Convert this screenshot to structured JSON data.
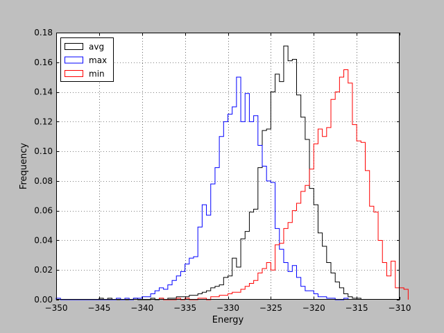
{
  "chart_data": {
    "type": "histogram-step",
    "xlabel": "Energy",
    "ylabel": "Frequency",
    "xlim": [
      -350,
      -310
    ],
    "ylim": [
      0,
      0.18
    ],
    "xticks": [
      -350,
      -345,
      -340,
      -335,
      -330,
      -325,
      -320,
      -315,
      -310
    ],
    "xtick_labels": [
      "−350",
      "−345",
      "−340",
      "−335",
      "−330",
      "−325",
      "−320",
      "−315",
      "−310"
    ],
    "yticks": [
      0.0,
      0.02,
      0.04,
      0.06,
      0.08,
      0.1,
      0.12,
      0.14,
      0.16,
      0.18
    ],
    "ytick_labels": [
      "0.00",
      "0.02",
      "0.04",
      "0.06",
      "0.08",
      "0.10",
      "0.12",
      "0.14",
      "0.16",
      "0.18"
    ],
    "grid": true,
    "grid_style": "dotted",
    "legend_position": "top-left",
    "bin_width": 0.5,
    "series": [
      {
        "name": "avg",
        "color": "#000000",
        "x_start": -345,
        "values": [
          0.001,
          0,
          0.001,
          0,
          0,
          0,
          0,
          0,
          0.001,
          0,
          0,
          0,
          0.001,
          0,
          0.001,
          0,
          0.001,
          0.001,
          0.002,
          0.002,
          0.002,
          0.003,
          0.003,
          0.004,
          0.005,
          0.006,
          0.008,
          0.009,
          0.01,
          0.015,
          0.016,
          0.028,
          0.022,
          0.041,
          0.046,
          0.059,
          0.061,
          0.089,
          0.114,
          0.115,
          0.14,
          0.152,
          0.147,
          0.171,
          0.161,
          0.162,
          0.138,
          0.123,
          0.108,
          0.075,
          0.064,
          0.045,
          0.036,
          0.025,
          0.018,
          0.012,
          0.008,
          0.004,
          0.002,
          0.001,
          0.001
        ]
      },
      {
        "name": "max",
        "color": "#0000ff",
        "x_start": -350,
        "values": [
          0.001,
          0,
          0,
          0,
          0,
          0,
          0,
          0,
          0,
          0,
          0,
          0,
          0,
          0,
          0.001,
          0,
          0.001,
          0,
          0.001,
          0.001,
          0.002,
          0.002,
          0.004,
          0.006,
          0.008,
          0.007,
          0.01,
          0.013,
          0.016,
          0.019,
          0.024,
          0.028,
          0.029,
          0.049,
          0.064,
          0.057,
          0.078,
          0.089,
          0.11,
          0.12,
          0.125,
          0.13,
          0.15,
          0.12,
          0.139,
          0.12,
          0.124,
          0.104,
          0.09,
          0.08,
          0.079,
          0.048,
          0.034,
          0.025,
          0.019,
          0.023,
          0.015,
          0.009,
          0.006,
          0.006,
          0.004,
          0.002,
          0.002,
          0.001,
          0.001,
          0,
          0,
          0.001
        ]
      },
      {
        "name": "min",
        "color": "#ff0000",
        "x_start": -338,
        "values": [
          0.001,
          0,
          0,
          0,
          0.001,
          0,
          0.001,
          0,
          0,
          0.001,
          0.001,
          0,
          0.002,
          0.002,
          0.003,
          0.003,
          0.004,
          0.005,
          0.005,
          0.007,
          0.009,
          0.011,
          0.013,
          0.018,
          0.021,
          0.025,
          0.02,
          0.037,
          0.038,
          0.048,
          0.052,
          0.06,
          0.065,
          0.073,
          0.077,
          0.088,
          0.105,
          0.115,
          0.11,
          0.116,
          0.135,
          0.14,
          0.15,
          0.155,
          0.146,
          0.118,
          0.107,
          0.106,
          0.087,
          0.063,
          0.059,
          0.04,
          0.025,
          0.016,
          0.026,
          0.008,
          0.008,
          0.007
        ]
      }
    ]
  }
}
